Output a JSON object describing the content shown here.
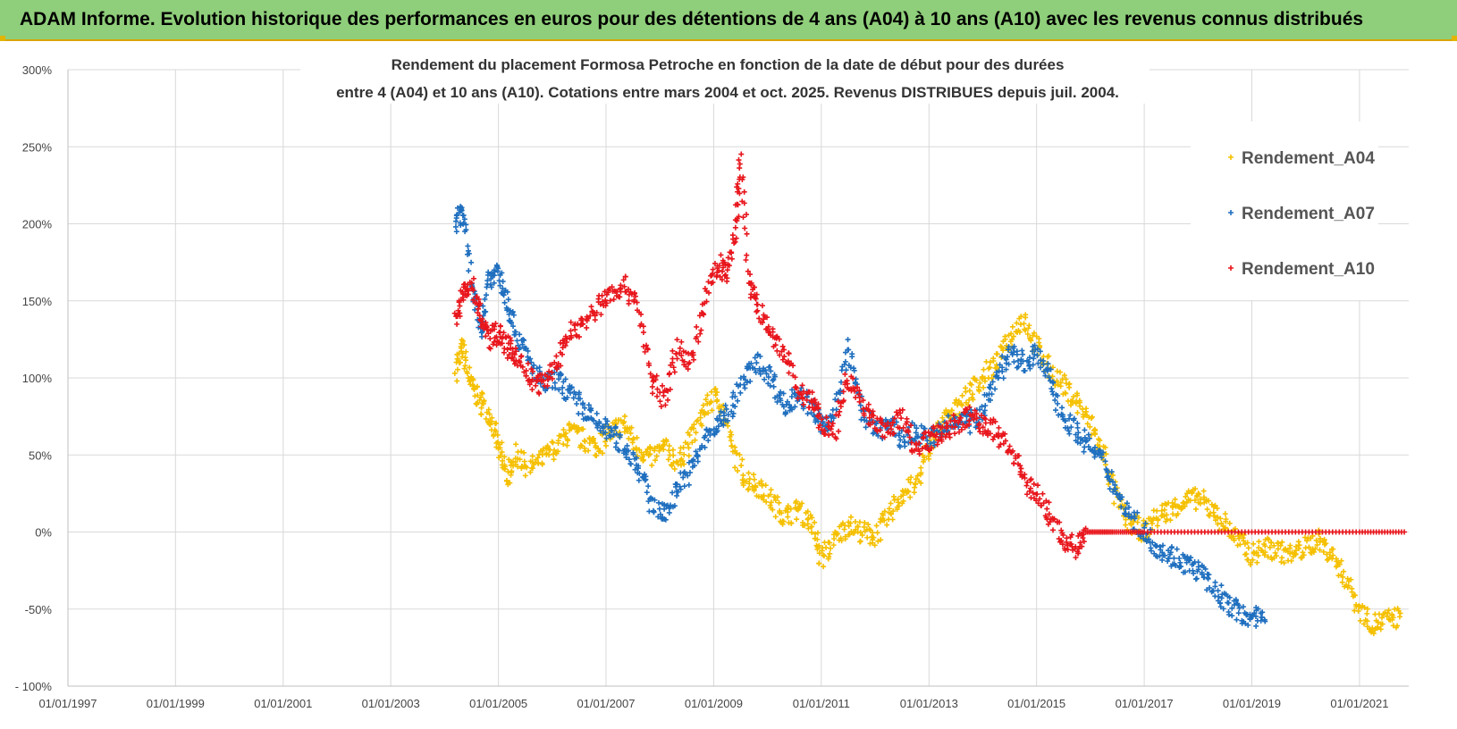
{
  "header": {
    "title": "ADAM Informe. Evolution historique des performances en euros pour des détentions de 4 ans (A04) à 10 ans (A10) avec les revenus connus distribués"
  },
  "colors": {
    "header_bg": "#8fce7a",
    "A04": "#f5c000",
    "A07": "#1f6fbf",
    "A10": "#e8161c",
    "grid": "#d9d9d9"
  },
  "chart_data": {
    "type": "scatter",
    "title_lines": [
      "Rendement du placement Formosa Petroche  en fonction de la date de début pour des durées",
      "entre 4 (A04) et 10 ans (A10). Cotations entre mars 2004 et oct. 2025. Revenus DISTRIBUES depuis juil. 2004."
    ],
    "xlabel": "",
    "ylabel": "",
    "x_ticks": [
      "01/01/1997",
      "01/01/1999",
      "01/01/2001",
      "01/01/2003",
      "01/01/2005",
      "01/01/2007",
      "01/01/2009",
      "01/01/2011",
      "01/01/2013",
      "01/01/2015",
      "01/01/2017",
      "01/01/2019",
      "01/01/2021"
    ],
    "xlim": [
      "1997-01-01",
      "2021-12-01"
    ],
    "y_ticks": [
      "300%",
      "250%",
      "200%",
      "150%",
      "100%",
      "50%",
      "0%",
      "-50%",
      "- 100%"
    ],
    "ylim": [
      -100,
      300
    ],
    "legend_position": "top-right",
    "grid": true,
    "series": [
      {
        "name": "Rendement_A04",
        "color": "#f5c000",
        "points": [
          [
            "2004-03-15",
            105
          ],
          [
            "2004-05-01",
            120
          ],
          [
            "2004-07-01",
            95
          ],
          [
            "2004-09-01",
            85
          ],
          [
            "2004-11-01",
            75
          ],
          [
            "2005-01-01",
            55
          ],
          [
            "2005-03-01",
            35
          ],
          [
            "2005-05-01",
            50
          ],
          [
            "2005-08-01",
            42
          ],
          [
            "2005-11-01",
            48
          ],
          [
            "2006-02-01",
            55
          ],
          [
            "2006-05-01",
            65
          ],
          [
            "2006-08-01",
            60
          ],
          [
            "2006-11-01",
            55
          ],
          [
            "2007-02-01",
            65
          ],
          [
            "2007-05-01",
            70
          ],
          [
            "2007-08-01",
            55
          ],
          [
            "2007-11-01",
            48
          ],
          [
            "2008-02-01",
            55
          ],
          [
            "2008-05-01",
            45
          ],
          [
            "2008-08-01",
            60
          ],
          [
            "2008-11-01",
            80
          ],
          [
            "2009-02-01",
            90
          ],
          [
            "2009-05-01",
            55
          ],
          [
            "2009-08-01",
            35
          ],
          [
            "2009-11-01",
            30
          ],
          [
            "2010-02-01",
            20
          ],
          [
            "2010-05-01",
            10
          ],
          [
            "2010-08-01",
            15
          ],
          [
            "2010-11-01",
            5
          ],
          [
            "2011-01-01",
            -18
          ],
          [
            "2011-04-01",
            -5
          ],
          [
            "2011-07-01",
            5
          ],
          [
            "2011-10-01",
            0
          ],
          [
            "2012-01-01",
            -3
          ],
          [
            "2012-04-01",
            10
          ],
          [
            "2012-07-01",
            25
          ],
          [
            "2012-10-01",
            30
          ],
          [
            "2013-01-01",
            55
          ],
          [
            "2013-04-01",
            70
          ],
          [
            "2013-07-01",
            80
          ],
          [
            "2013-10-01",
            90
          ],
          [
            "2014-01-01",
            100
          ],
          [
            "2014-04-01",
            110
          ],
          [
            "2014-07-01",
            125
          ],
          [
            "2014-10-01",
            140
          ],
          [
            "2015-01-01",
            120
          ],
          [
            "2015-04-01",
            105
          ],
          [
            "2015-07-01",
            95
          ],
          [
            "2015-10-01",
            85
          ],
          [
            "2016-01-01",
            70
          ],
          [
            "2016-04-01",
            50
          ],
          [
            "2016-07-01",
            20
          ],
          [
            "2016-10-01",
            5
          ],
          [
            "2017-01-01",
            0
          ],
          [
            "2017-04-01",
            10
          ],
          [
            "2017-07-01",
            15
          ],
          [
            "2017-10-01",
            20
          ],
          [
            "2018-01-01",
            22
          ],
          [
            "2018-04-01",
            15
          ],
          [
            "2018-07-01",
            5
          ],
          [
            "2018-10-01",
            -5
          ],
          [
            "2019-01-01",
            -15
          ],
          [
            "2019-04-01",
            -10
          ],
          [
            "2019-07-01",
            -12
          ],
          [
            "2019-10-01",
            -15
          ],
          [
            "2020-01-01",
            -10
          ],
          [
            "2020-04-01",
            -5
          ],
          [
            "2020-07-01",
            -15
          ],
          [
            "2020-10-01",
            -30
          ],
          [
            "2021-01-01",
            -50
          ],
          [
            "2021-04-01",
            -60
          ],
          [
            "2021-07-01",
            -57
          ],
          [
            "2021-10-01",
            -55
          ]
        ]
      },
      {
        "name": "Rendement_A07",
        "color": "#1f6fbf",
        "points": [
          [
            "2004-03-15",
            200
          ],
          [
            "2004-05-01",
            210
          ],
          [
            "2004-07-01",
            160
          ],
          [
            "2004-09-01",
            130
          ],
          [
            "2004-11-01",
            165
          ],
          [
            "2005-01-01",
            170
          ],
          [
            "2005-03-01",
            150
          ],
          [
            "2005-05-01",
            130
          ],
          [
            "2005-08-01",
            110
          ],
          [
            "2005-11-01",
            95
          ],
          [
            "2006-02-01",
            100
          ],
          [
            "2006-05-01",
            90
          ],
          [
            "2006-08-01",
            80
          ],
          [
            "2006-11-01",
            70
          ],
          [
            "2007-02-01",
            65
          ],
          [
            "2007-05-01",
            55
          ],
          [
            "2007-08-01",
            45
          ],
          [
            "2007-11-01",
            20
          ],
          [
            "2008-02-01",
            10
          ],
          [
            "2008-05-01",
            30
          ],
          [
            "2008-08-01",
            40
          ],
          [
            "2008-11-01",
            60
          ],
          [
            "2009-02-01",
            70
          ],
          [
            "2009-05-01",
            80
          ],
          [
            "2009-08-01",
            100
          ],
          [
            "2009-11-01",
            110
          ],
          [
            "2010-02-01",
            100
          ],
          [
            "2010-05-01",
            80
          ],
          [
            "2010-08-01",
            90
          ],
          [
            "2010-11-01",
            80
          ],
          [
            "2011-01-01",
            70
          ],
          [
            "2011-04-01",
            75
          ],
          [
            "2011-07-01",
            120
          ],
          [
            "2011-10-01",
            80
          ],
          [
            "2012-01-01",
            65
          ],
          [
            "2012-04-01",
            70
          ],
          [
            "2012-07-01",
            60
          ],
          [
            "2012-10-01",
            65
          ],
          [
            "2013-01-01",
            60
          ],
          [
            "2013-04-01",
            65
          ],
          [
            "2013-07-01",
            75
          ],
          [
            "2013-10-01",
            70
          ],
          [
            "2014-01-01",
            80
          ],
          [
            "2014-04-01",
            100
          ],
          [
            "2014-07-01",
            115
          ],
          [
            "2014-10-01",
            110
          ],
          [
            "2015-01-01",
            115
          ],
          [
            "2015-04-01",
            100
          ],
          [
            "2015-07-01",
            75
          ],
          [
            "2015-10-01",
            65
          ],
          [
            "2016-01-01",
            55
          ],
          [
            "2016-04-01",
            45
          ],
          [
            "2016-07-01",
            25
          ],
          [
            "2016-10-01",
            10
          ],
          [
            "2017-01-01",
            0
          ],
          [
            "2017-04-01",
            -10
          ],
          [
            "2017-07-01",
            -15
          ],
          [
            "2017-10-01",
            -20
          ],
          [
            "2018-01-01",
            -25
          ],
          [
            "2018-04-01",
            -35
          ],
          [
            "2018-07-01",
            -45
          ],
          [
            "2018-10-01",
            -52
          ],
          [
            "2019-01-01",
            -55
          ],
          [
            "2019-04-01",
            -58
          ]
        ]
      },
      {
        "name": "Rendement_A10",
        "color": "#e8161c",
        "points": [
          [
            "2004-03-15",
            140
          ],
          [
            "2004-05-01",
            155
          ],
          [
            "2004-07-01",
            160
          ],
          [
            "2004-09-01",
            140
          ],
          [
            "2004-11-01",
            125
          ],
          [
            "2005-01-01",
            130
          ],
          [
            "2005-03-01",
            120
          ],
          [
            "2005-05-01",
            115
          ],
          [
            "2005-08-01",
            100
          ],
          [
            "2005-11-01",
            95
          ],
          [
            "2006-02-01",
            110
          ],
          [
            "2006-05-01",
            130
          ],
          [
            "2006-08-01",
            135
          ],
          [
            "2006-11-01",
            145
          ],
          [
            "2007-02-01",
            155
          ],
          [
            "2007-05-01",
            160
          ],
          [
            "2007-08-01",
            150
          ],
          [
            "2007-11-01",
            100
          ],
          [
            "2008-02-01",
            85
          ],
          [
            "2008-05-01",
            120
          ],
          [
            "2008-08-01",
            110
          ],
          [
            "2008-11-01",
            150
          ],
          [
            "2009-02-01",
            175
          ],
          [
            "2009-04-01",
            165
          ],
          [
            "2009-06-01",
            200
          ],
          [
            "2009-07-01",
            240
          ],
          [
            "2009-09-01",
            160
          ],
          [
            "2009-11-01",
            145
          ],
          [
            "2010-02-01",
            125
          ],
          [
            "2010-05-01",
            115
          ],
          [
            "2010-08-01",
            90
          ],
          [
            "2010-11-01",
            85
          ],
          [
            "2011-01-01",
            70
          ],
          [
            "2011-04-01",
            65
          ],
          [
            "2011-07-01",
            100
          ],
          [
            "2011-10-01",
            85
          ],
          [
            "2012-01-01",
            70
          ],
          [
            "2012-04-01",
            65
          ],
          [
            "2012-07-01",
            75
          ],
          [
            "2012-10-01",
            55
          ],
          [
            "2013-01-01",
            60
          ],
          [
            "2013-04-01",
            65
          ],
          [
            "2013-07-01",
            70
          ],
          [
            "2013-10-01",
            75
          ],
          [
            "2014-01-01",
            70
          ],
          [
            "2014-04-01",
            65
          ],
          [
            "2014-07-01",
            55
          ],
          [
            "2014-10-01",
            35
          ],
          [
            "2015-01-01",
            25
          ],
          [
            "2015-04-01",
            10
          ],
          [
            "2015-07-01",
            -5
          ],
          [
            "2015-10-01",
            -10
          ],
          [
            "2015-12-01",
            0
          ],
          [
            "2016-06-01",
            0
          ],
          [
            "2017-01-01",
            0
          ],
          [
            "2018-01-01",
            0
          ],
          [
            "2019-01-01",
            0
          ],
          [
            "2020-01-01",
            0
          ],
          [
            "2021-01-01",
            0
          ],
          [
            "2021-11-01",
            0
          ]
        ]
      }
    ]
  }
}
